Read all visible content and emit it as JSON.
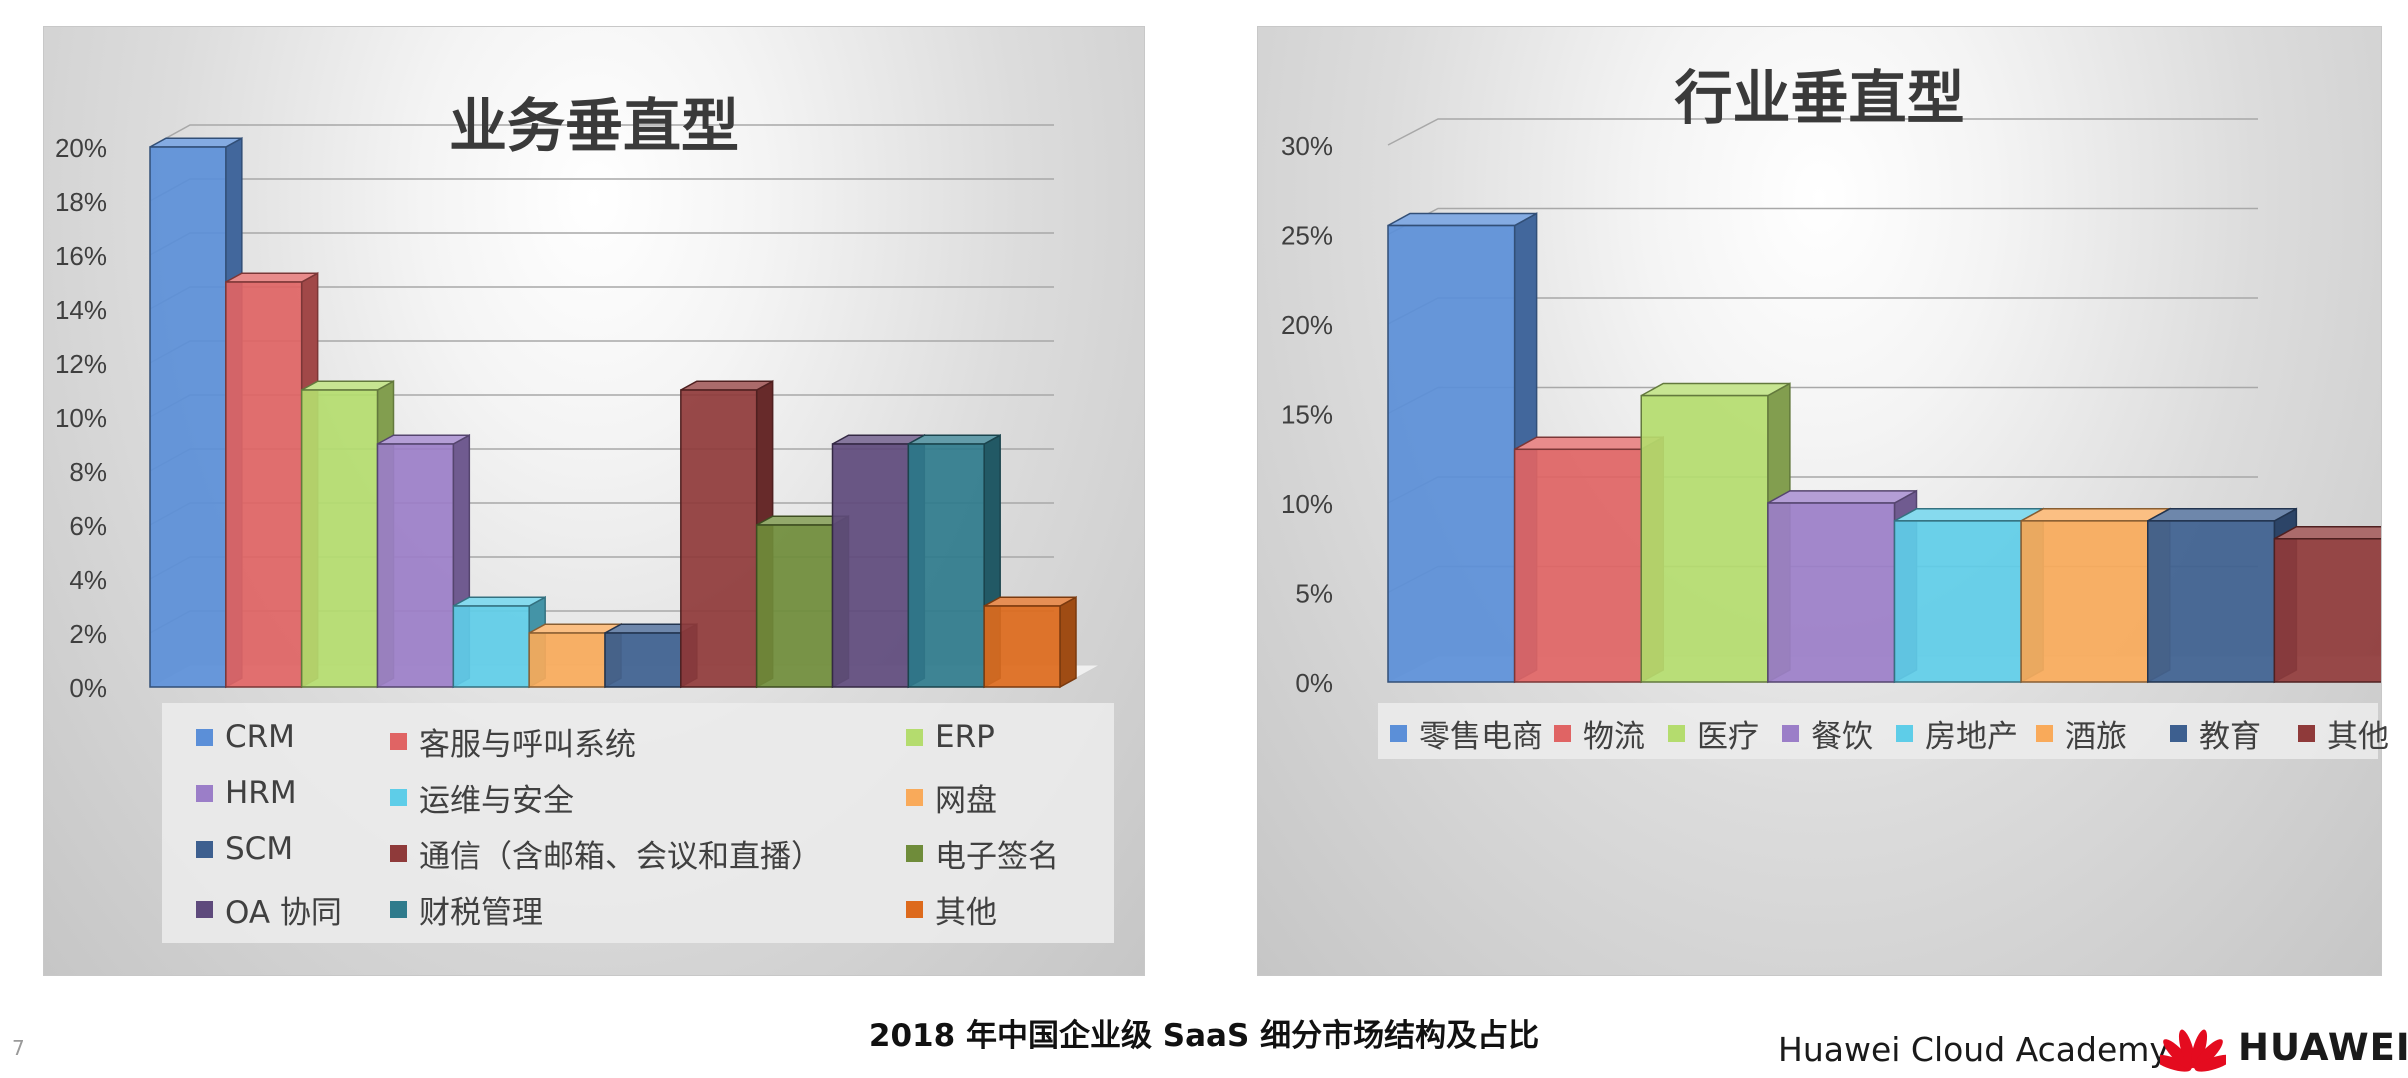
{
  "page": {
    "page_number": "7",
    "caption": "2018 年中国企业级 SaaS 细分市场结构及占比",
    "brand": {
      "text": "Huawei Cloud Academy",
      "logo_text": "HUAWEI",
      "logo_icon": "huawei-flower-icon",
      "logo_color": "#e40b1f"
    }
  },
  "chart_data": [
    {
      "type": "bar",
      "title": "业务垂直型",
      "categories": [
        "CRM",
        "客服与呼叫系统",
        "ERP",
        "HRM",
        "运维与安全",
        "网盘",
        "SCM",
        "通信（含邮箱、会议和直播）",
        "电子签名",
        "OA 协同",
        "财税管理",
        "其他"
      ],
      "values": [
        20,
        15,
        11,
        9,
        3,
        2,
        2,
        11,
        6,
        9,
        9,
        3
      ],
      "colors": [
        "#5b8fd8",
        "#e06464",
        "#b4dc6e",
        "#9b7ec8",
        "#5ecde8",
        "#f9aa5a",
        "#3d5f8f",
        "#8f3a3a",
        "#6f8c3a",
        "#5e4a7c",
        "#2f7b8c",
        "#dd6a1c"
      ],
      "ylim": [
        0,
        20
      ],
      "y_ticks": [
        "0%",
        "2%",
        "4%",
        "6%",
        "8%",
        "10%",
        "12%",
        "14%",
        "16%",
        "18%",
        "20%"
      ],
      "xlabel": "",
      "ylabel": "",
      "grid": true,
      "legend": "bottom",
      "legend_rows": [
        [
          "CRM",
          "客服与呼叫系统",
          "ERP"
        ],
        [
          "HRM",
          "运维与安全",
          "网盘"
        ],
        [
          "SCM",
          "通信（含邮箱、会议和直播）",
          "电子签名"
        ],
        [
          "OA 协同",
          "财税管理",
          "其他"
        ]
      ]
    },
    {
      "type": "bar",
      "title": "行业垂直型",
      "categories": [
        "零售电商",
        "物流",
        "医疗",
        "餐饮",
        "房地产",
        "酒旅",
        "教育",
        "其他"
      ],
      "values": [
        25.5,
        13,
        16,
        10,
        9,
        9,
        9,
        8
      ],
      "colors": [
        "#5b8fd8",
        "#e06464",
        "#b4dc6e",
        "#9b7ec8",
        "#5ecde8",
        "#f9aa5a",
        "#3d5f8f",
        "#8f3a3a"
      ],
      "ylim": [
        0,
        30
      ],
      "y_ticks": [
        "0%",
        "5%",
        "10%",
        "15%",
        "20%",
        "25%",
        "30%"
      ],
      "xlabel": "",
      "ylabel": "",
      "grid": true,
      "legend": "bottom"
    }
  ]
}
